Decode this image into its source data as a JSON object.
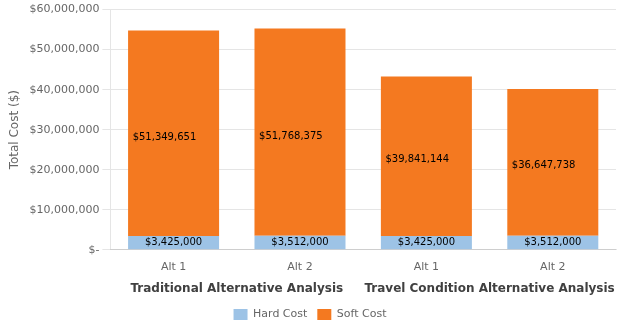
{
  "chart_data": {
    "type": "bar",
    "stacked": true,
    "groups": [
      {
        "name": "Traditional Alternative Analysis",
        "categories": [
          "Alt 1",
          "Alt 2"
        ]
      },
      {
        "name": "Travel Condition Alternative Analysis",
        "categories": [
          "Alt 1",
          "Alt 2"
        ]
      }
    ],
    "series": [
      {
        "name": "Hard Cost",
        "color": "#9DC3E6",
        "values": [
          3425000,
          3512000,
          3425000,
          3512000
        ],
        "value_labels": [
          "$3,425,000",
          "$3,512,000",
          "$3,425,000",
          "$3,512,000"
        ]
      },
      {
        "name": "Soft Cost",
        "color": "#F47920",
        "values": [
          51349651,
          51768375,
          39841144,
          36647738
        ],
        "value_labels": [
          "$51,349,651",
          "$51,768,375",
          "$39,841,144",
          "$36,647,738"
        ]
      }
    ],
    "ylabel": "Total Cost ($)",
    "ylim": [
      0,
      60000000
    ],
    "yticks": [
      {
        "value": 0,
        "label": "$-"
      },
      {
        "value": 10000000,
        "label": "$10,000,000"
      },
      {
        "value": 20000000,
        "label": "$20,000,000"
      },
      {
        "value": 30000000,
        "label": "$30,000,000"
      },
      {
        "value": 40000000,
        "label": "$40,000,000"
      },
      {
        "value": 50000000,
        "label": "$50,000,000"
      },
      {
        "value": 60000000,
        "label": "$60,000,000"
      }
    ],
    "grid": true,
    "legend": "bottom",
    "data_labels": true
  }
}
